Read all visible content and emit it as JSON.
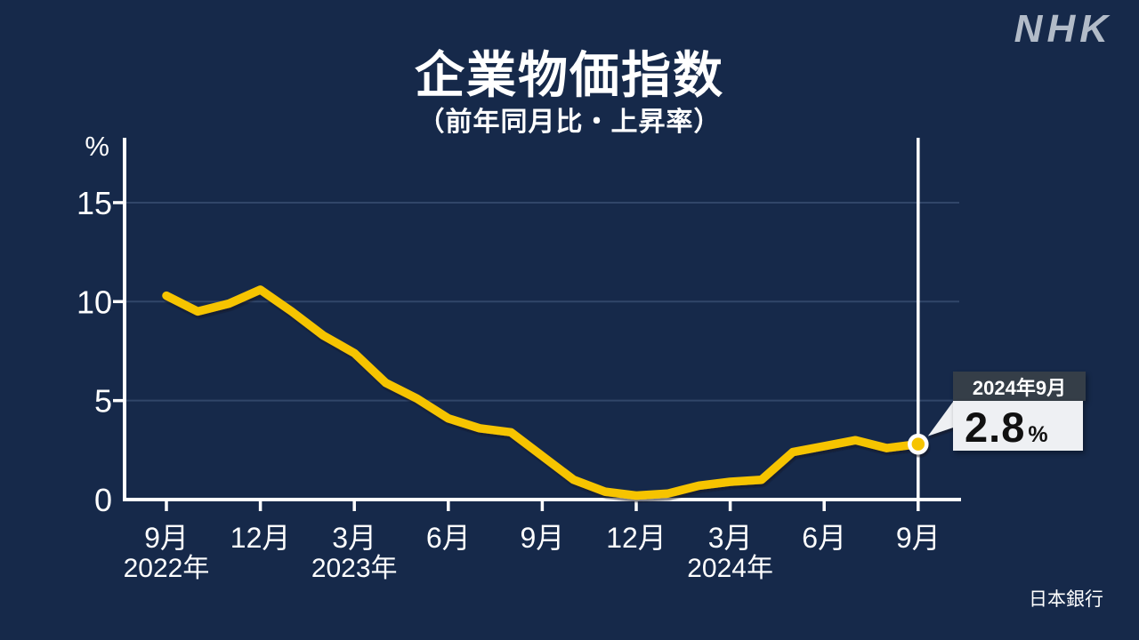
{
  "page": {
    "background": "#16294a"
  },
  "header": {
    "logo": "NHK",
    "title": "企業物価指数",
    "subtitle": "（前年同月比・上昇率）"
  },
  "source_label": "日本銀行",
  "callout": {
    "date_label": "2024年9月",
    "value": "2.8",
    "unit": "%"
  },
  "chart_data": {
    "type": "line",
    "title": "企業物価指数",
    "subtitle": "（前年同月比・上昇率）",
    "xlabel": "",
    "ylabel": "%",
    "ylim": [
      0,
      17
    ],
    "grid": true,
    "legend": "none",
    "x_months": [
      "2022-09",
      "2022-10",
      "2022-11",
      "2022-12",
      "2023-01",
      "2023-02",
      "2023-03",
      "2023-04",
      "2023-05",
      "2023-06",
      "2023-07",
      "2023-08",
      "2023-09",
      "2023-10",
      "2023-11",
      "2023-12",
      "2024-01",
      "2024-02",
      "2024-03",
      "2024-04",
      "2024-05",
      "2024-06",
      "2024-07",
      "2024-08",
      "2024-09"
    ],
    "values": [
      10.3,
      9.5,
      9.9,
      10.6,
      9.5,
      8.3,
      7.4,
      5.9,
      5.1,
      4.1,
      3.6,
      3.4,
      2.2,
      1.0,
      0.4,
      0.2,
      0.3,
      0.7,
      0.9,
      1.0,
      2.4,
      2.7,
      3.0,
      2.6,
      2.8
    ],
    "y_ticks": [
      0,
      5,
      10,
      15
    ],
    "x_axis_ticks": [
      {
        "month": "9月",
        "year": "2022年"
      },
      {
        "month": "12月",
        "year": ""
      },
      {
        "month": "3月",
        "year": "2023年"
      },
      {
        "month": "6月",
        "year": ""
      },
      {
        "month": "9月",
        "year": ""
      },
      {
        "month": "12月",
        "year": ""
      },
      {
        "month": "3月",
        "year": "2024年"
      },
      {
        "month": "6月",
        "year": ""
      },
      {
        "month": "9月",
        "year": ""
      }
    ],
    "highlight": {
      "index": 24,
      "month": "2024-09",
      "value": 2.8,
      "label": "2024年9月"
    },
    "colors": {
      "background": "#16294a",
      "line": "#f6c405",
      "marker_fill": "#f6c405",
      "marker_ring": "#ffffff",
      "axis": "#ffffff",
      "grid": "#314669",
      "highlight_line": "#ffffff",
      "callout_header_bg": "#353e48",
      "callout_header_text": "#ffffff",
      "callout_body_bg": "#eef0f3",
      "callout_body_text": "#111111",
      "logo": "#b2bbc8"
    }
  }
}
